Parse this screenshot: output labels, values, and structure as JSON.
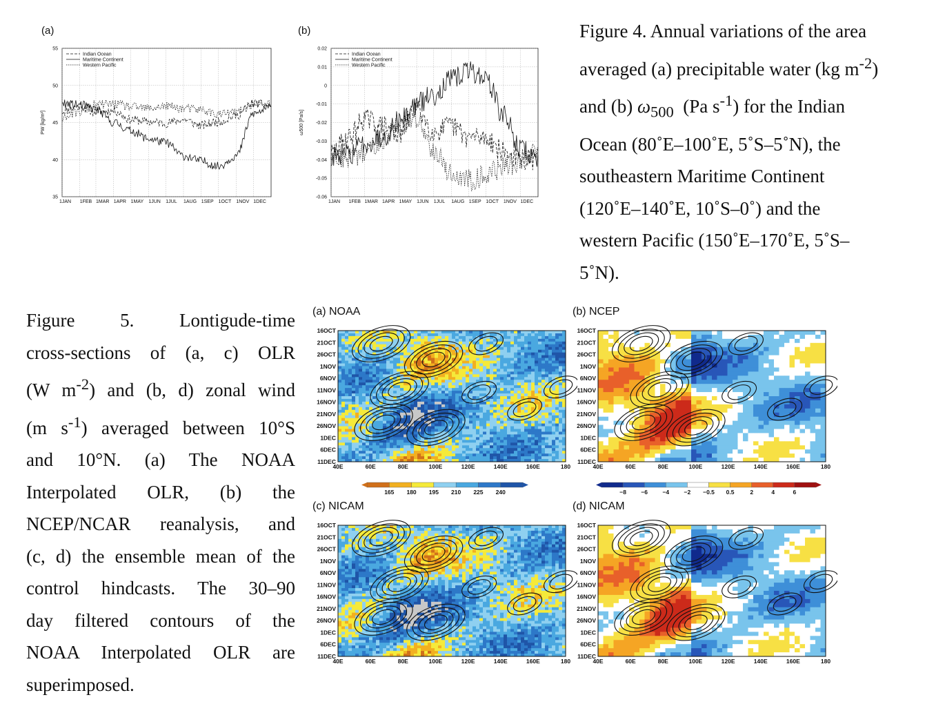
{
  "fig4": {
    "panel_a_label": "(a)",
    "panel_b_label": "(b)",
    "caption_html": "Figure 4. Annual variations of the area averaged (a) precipitable water (kg m<sup>-2</sup>) and (b) <i>ω</i><sub>500</sub> &nbsp;(Pa s<sup>-1</sup>) for the Indian Ocean (80˚E–100˚E, 5˚S–5˚N), the southeastern Maritime Continent (120˚E–140˚E, 10˚S–0˚) and the western Pacific (150˚E–170˚E, 5˚S–5˚N).",
    "legend": [
      "Indian Ocean",
      "Maritime Continent",
      "Western Pacific"
    ]
  },
  "fig5": {
    "caption_lines": [
      "Figure 5. Lontigude-time",
      "cross-sections of (a, c) OLR",
      "(W m<sup>-2</sup>) and (b, d) zonal wind",
      "(m s<sup>-1</sup>) averaged between 10°S",
      "and 10°N. (a) The NOAA",
      "Interpolated OLR, (b) the",
      "NCEP/NCAR reanalysis, and",
      "(c, d) the ensemble mean of the",
      "control hindcasts. The 30–90",
      "day filtered contours of the",
      "NOAA Interpolated OLR are",
      "superimposed."
    ],
    "panels": [
      {
        "title": "(a) NOAA",
        "kind": "olr"
      },
      {
        "title": "(b) NCEP",
        "kind": "wind"
      },
      {
        "title": "(c) NICAM",
        "kind": "olr"
      },
      {
        "title": "(d) NICAM",
        "kind": "wind"
      }
    ],
    "y_ticks": [
      "16OCT",
      "21OCT",
      "26OCT",
      "1NOV",
      "6NOV",
      "11NOV",
      "16NOV",
      "21NOV",
      "26NOV",
      "1DEC",
      "6DEC",
      "11DEC"
    ],
    "x_ticks": [
      "40E",
      "60E",
      "80E",
      "100E",
      "120E",
      "140E",
      "160E",
      "180"
    ],
    "olr_colorbar": [
      "165",
      "180",
      "195",
      "210",
      "225",
      "240"
    ],
    "wind_colorbar": [
      "−8",
      "−6",
      "−4",
      "−2",
      "−0.5",
      "0.5",
      "2",
      "4",
      "6"
    ]
  },
  "chart_data": [
    {
      "type": "line",
      "ylabel": "PW [kg/m²]",
      "ylim": [
        35,
        55
      ],
      "y_ticks": [
        "35",
        "40",
        "45",
        "50",
        "55"
      ],
      "x_ticks": [
        "1JAN",
        "1FEB",
        "1MAR",
        "1APR",
        "1MAY",
        "1JUN",
        "1JUL",
        "1AUG",
        "1SEP",
        "1OCT",
        "1NOV",
        "1DEC"
      ],
      "x_day": [
        0,
        31,
        59,
        90,
        120,
        151,
        181,
        212,
        243,
        273,
        304,
        334,
        365
      ],
      "series": [
        {
          "name": "Indian Ocean",
          "dash": "4,2",
          "values": [
            46.5,
            47.2,
            46.4,
            46.6,
            45.4,
            45.1,
            44.9,
            45.4,
            44.6,
            45.1,
            45.9,
            47.6,
            47.3
          ]
        },
        {
          "name": "Maritime Continent",
          "dash": "",
          "values": [
            47.5,
            47.4,
            46.8,
            45.0,
            43.9,
            42.8,
            42.3,
            40.5,
            39.8,
            39.1,
            40.5,
            46.2,
            47.0
          ]
        },
        {
          "name": "Western Pacific",
          "dash": "1.5,1.5",
          "values": [
            45.8,
            46.4,
            47.4,
            47.5,
            47.1,
            46.9,
            47.2,
            46.9,
            46.7,
            46.1,
            46.4,
            47.4,
            47.6
          ]
        }
      ]
    },
    {
      "type": "line",
      "ylabel": "ω500 [Pa/s]",
      "ylim": [
        -0.06,
        0.02
      ],
      "y_ticks": [
        "-0.06",
        "-0.05",
        "-0.04",
        "-0.03",
        "-0.02",
        "-0.01",
        "0",
        "0.01",
        "0.02"
      ],
      "x_ticks": [
        "1JAN",
        "1FEB",
        "1MAR",
        "1APR",
        "1MAY",
        "1JUN",
        "1JUL",
        "1AUG",
        "1SEP",
        "1OCT",
        "1NOV",
        "1DEC"
      ],
      "x_day": [
        0,
        31,
        59,
        90,
        120,
        151,
        181,
        212,
        243,
        273,
        304,
        334,
        365
      ],
      "series": [
        {
          "name": "Indian Ocean",
          "dash": "4,2",
          "values": [
            -0.037,
            -0.028,
            -0.018,
            -0.022,
            -0.026,
            -0.012,
            -0.025,
            -0.022,
            -0.028,
            -0.028,
            -0.036,
            -0.04,
            -0.04
          ]
        },
        {
          "name": "Maritime Continent",
          "dash": "",
          "values": [
            -0.038,
            -0.037,
            -0.031,
            -0.028,
            -0.019,
            -0.01,
            -0.005,
            0.003,
            0.008,
            0.004,
            -0.016,
            -0.034,
            -0.04
          ]
        },
        {
          "name": "Western Pacific",
          "dash": "1.5,1.5",
          "values": [
            -0.036,
            -0.041,
            -0.036,
            -0.029,
            -0.022,
            -0.018,
            -0.034,
            -0.048,
            -0.051,
            -0.048,
            -0.044,
            -0.041,
            -0.035
          ]
        }
      ]
    }
  ]
}
